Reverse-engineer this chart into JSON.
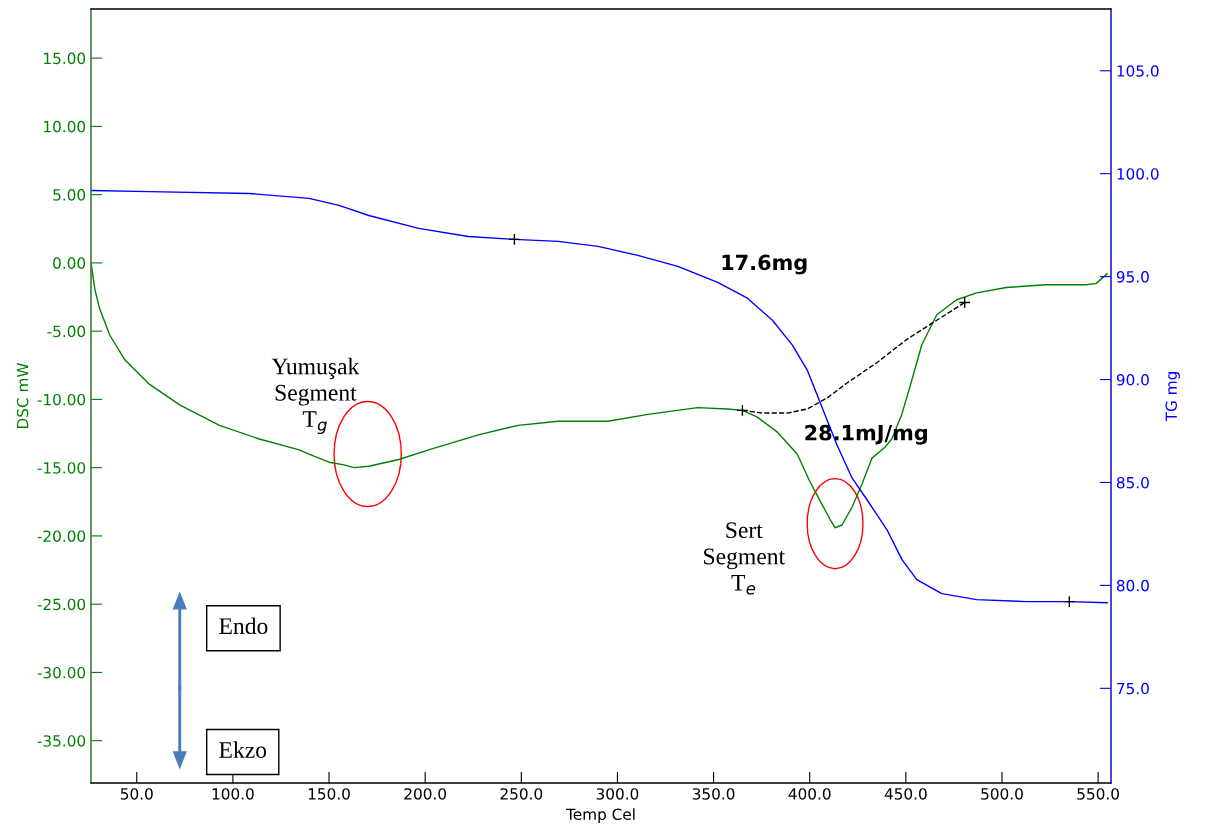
{
  "chart_data": {
    "type": "line",
    "xlabel": "Temp Cel",
    "ylabel": "DSC mW",
    "y2label": "TG mg",
    "xlim": [
      26.2,
      556.7
    ],
    "ylim": [
      -38.1,
      18.6
    ],
    "y2lim": [
      70.4,
      108.0
    ],
    "xticks": [
      {
        "value": 50,
        "label": "50.0"
      },
      {
        "value": 100,
        "label": "100.0"
      },
      {
        "value": 150,
        "label": "150.0"
      },
      {
        "value": 200,
        "label": "200.0"
      },
      {
        "value": 250,
        "label": "250.0"
      },
      {
        "value": 300,
        "label": "300.0"
      },
      {
        "value": 350,
        "label": "350.0"
      },
      {
        "value": 400,
        "label": "400.0"
      },
      {
        "value": 450,
        "label": "450.0"
      },
      {
        "value": 500,
        "label": "500.0"
      },
      {
        "value": 550,
        "label": "550.0"
      }
    ],
    "yticks": [
      {
        "value": -35,
        "label": "-35.00"
      },
      {
        "value": -30,
        "label": "-30.00"
      },
      {
        "value": -25,
        "label": "-25.00"
      },
      {
        "value": -20,
        "label": "-20.00"
      },
      {
        "value": -15,
        "label": "-15.00"
      },
      {
        "value": -10,
        "label": "-10.00"
      },
      {
        "value": -5,
        "label": "-5.00"
      },
      {
        "value": 0,
        "label": "0.00"
      },
      {
        "value": 5,
        "label": "5.00"
      },
      {
        "value": 10,
        "label": "10.00"
      },
      {
        "value": 15,
        "label": "15.00"
      }
    ],
    "y2ticks": [
      {
        "value": 75,
        "label": "75.0"
      },
      {
        "value": 80,
        "label": "80.0"
      },
      {
        "value": 85,
        "label": "85.0"
      },
      {
        "value": 90,
        "label": "90.0"
      },
      {
        "value": 95,
        "label": "95.0"
      },
      {
        "value": 100,
        "label": "100.0"
      },
      {
        "value": 105,
        "label": "105.0"
      }
    ],
    "grid": false,
    "series": [
      {
        "color": "#008000",
        "axis": "y",
        "x": [
          26.2,
          28.3,
          30.8,
          36.0,
          43.8,
          56.7,
          72.3,
          93.0,
          113.7,
          134.5,
          139.6,
          150,
          157.8,
          163,
          170.7,
          186.3,
          201.8,
          227.7,
          248.4,
          269.2,
          295,
          315.8,
          341.7,
          357.3,
          365,
          372.8,
          383.2,
          393.5,
          399.7,
          404.9,
          410.6,
          413.2,
          416.8,
          422,
          427.2,
          432.4,
          439.1,
          442.7,
          447.9,
          453.1,
          458.3,
          466.1,
          476.4,
          486.8,
          502.3,
          523,
          543.8,
          549,
          554.7
        ],
        "values": [
          0,
          -2.0,
          -3.4,
          -5.3,
          -7.1,
          -8.9,
          -10.4,
          -11.9,
          -12.9,
          -13.7,
          -14.0,
          -14.6,
          -14.8,
          -15.0,
          -14.9,
          -14.4,
          -13.7,
          -12.6,
          -11.9,
          -11.6,
          -11.6,
          -11.1,
          -10.6,
          -10.7,
          -10.8,
          -11.3,
          -12.4,
          -14.0,
          -15.9,
          -17.3,
          -18.8,
          -19.4,
          -19.2,
          -17.9,
          -16.2,
          -14.3,
          -13.5,
          -12.9,
          -11.1,
          -8.6,
          -6.0,
          -3.8,
          -2.7,
          -2.2,
          -1.8,
          -1.6,
          -1.6,
          -1.5,
          -0.8
        ]
      },
      {
        "type": "line",
        "color": "#000000",
        "axis": "y",
        "line_style": "dashed",
        "x": [
          365,
          375.3,
          388.3,
          398.7,
          409,
          419.4,
          435,
          450.5,
          466.1,
          480.6
        ],
        "values": [
          -10.8,
          -11.0,
          -11.0,
          -10.7,
          -9.9,
          -8.8,
          -7.3,
          -5.6,
          -4.2,
          -2.9
        ]
      },
      {
        "color": "#0000ff",
        "axis": "y2",
        "x": [
          26.2,
          56.7,
          108.5,
          139.6,
          155.2,
          170.7,
          196.6,
          222.5,
          246.4,
          269.2,
          289.9,
          310.6,
          331.4,
          352.1,
          367.6,
          380.6,
          391,
          398.7,
          403.9,
          409,
          414.2,
          422,
          429.8,
          440.2,
          448,
          455.7,
          468.7,
          486.8,
          512.7,
          535,
          554.7
        ],
        "values": [
          99.18,
          99.13,
          99.04,
          98.8,
          98.46,
          97.97,
          97.34,
          96.95,
          96.81,
          96.71,
          96.47,
          96.03,
          95.5,
          94.72,
          93.95,
          92.88,
          91.67,
          90.46,
          89.25,
          88.03,
          86.82,
          85.22,
          84.16,
          82.7,
          81.25,
          80.28,
          79.6,
          79.31,
          79.21,
          79.21,
          79.16
        ]
      },
      {
        "type": "scatter",
        "color": "#000000",
        "axis": "y",
        "marker": "cross",
        "x": [
          365,
          480.6
        ],
        "values": [
          -10.8,
          -2.9
        ]
      },
      {
        "type": "scatter",
        "color": "#000000",
        "axis": "y2",
        "marker": "cross",
        "x": [
          246.4,
          535
        ],
        "values": [
          96.81,
          79.21
        ]
      }
    ],
    "annotations": [
      "17.6mg",
      "28.1mJ/mg",
      "Yumuşak\nSegment\nT$_{g}$",
      "Sert\nSegment\nT$_{e}$",
      "Endo",
      "Ekzo"
    ]
  }
}
